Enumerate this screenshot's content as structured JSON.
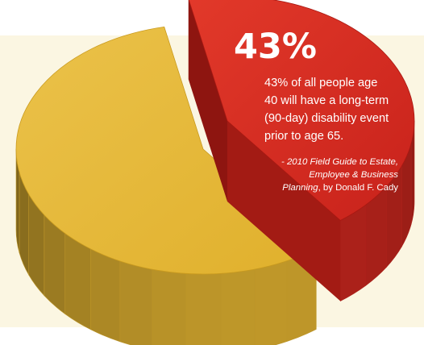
{
  "chart_data": {
    "type": "pie",
    "categories": [
      "",
      ""
    ],
    "values": [
      43,
      57
    ],
    "colors": [
      "#d0281f",
      "#e3b431"
    ],
    "exploded_slice": 0,
    "three_d": true,
    "annotation": {
      "percent_label": "43%",
      "body_lines": [
        "43% of all people age",
        "40 will have a long-term",
        "(90-day) disability event",
        "prior to age 65."
      ],
      "citation_lines": [
        "- 2010 Field Guide to Estate,",
        "Employee & Business"
      ],
      "citation_last_title": "Planning",
      "citation_last_rest": ", by Donald F. Cady"
    }
  }
}
